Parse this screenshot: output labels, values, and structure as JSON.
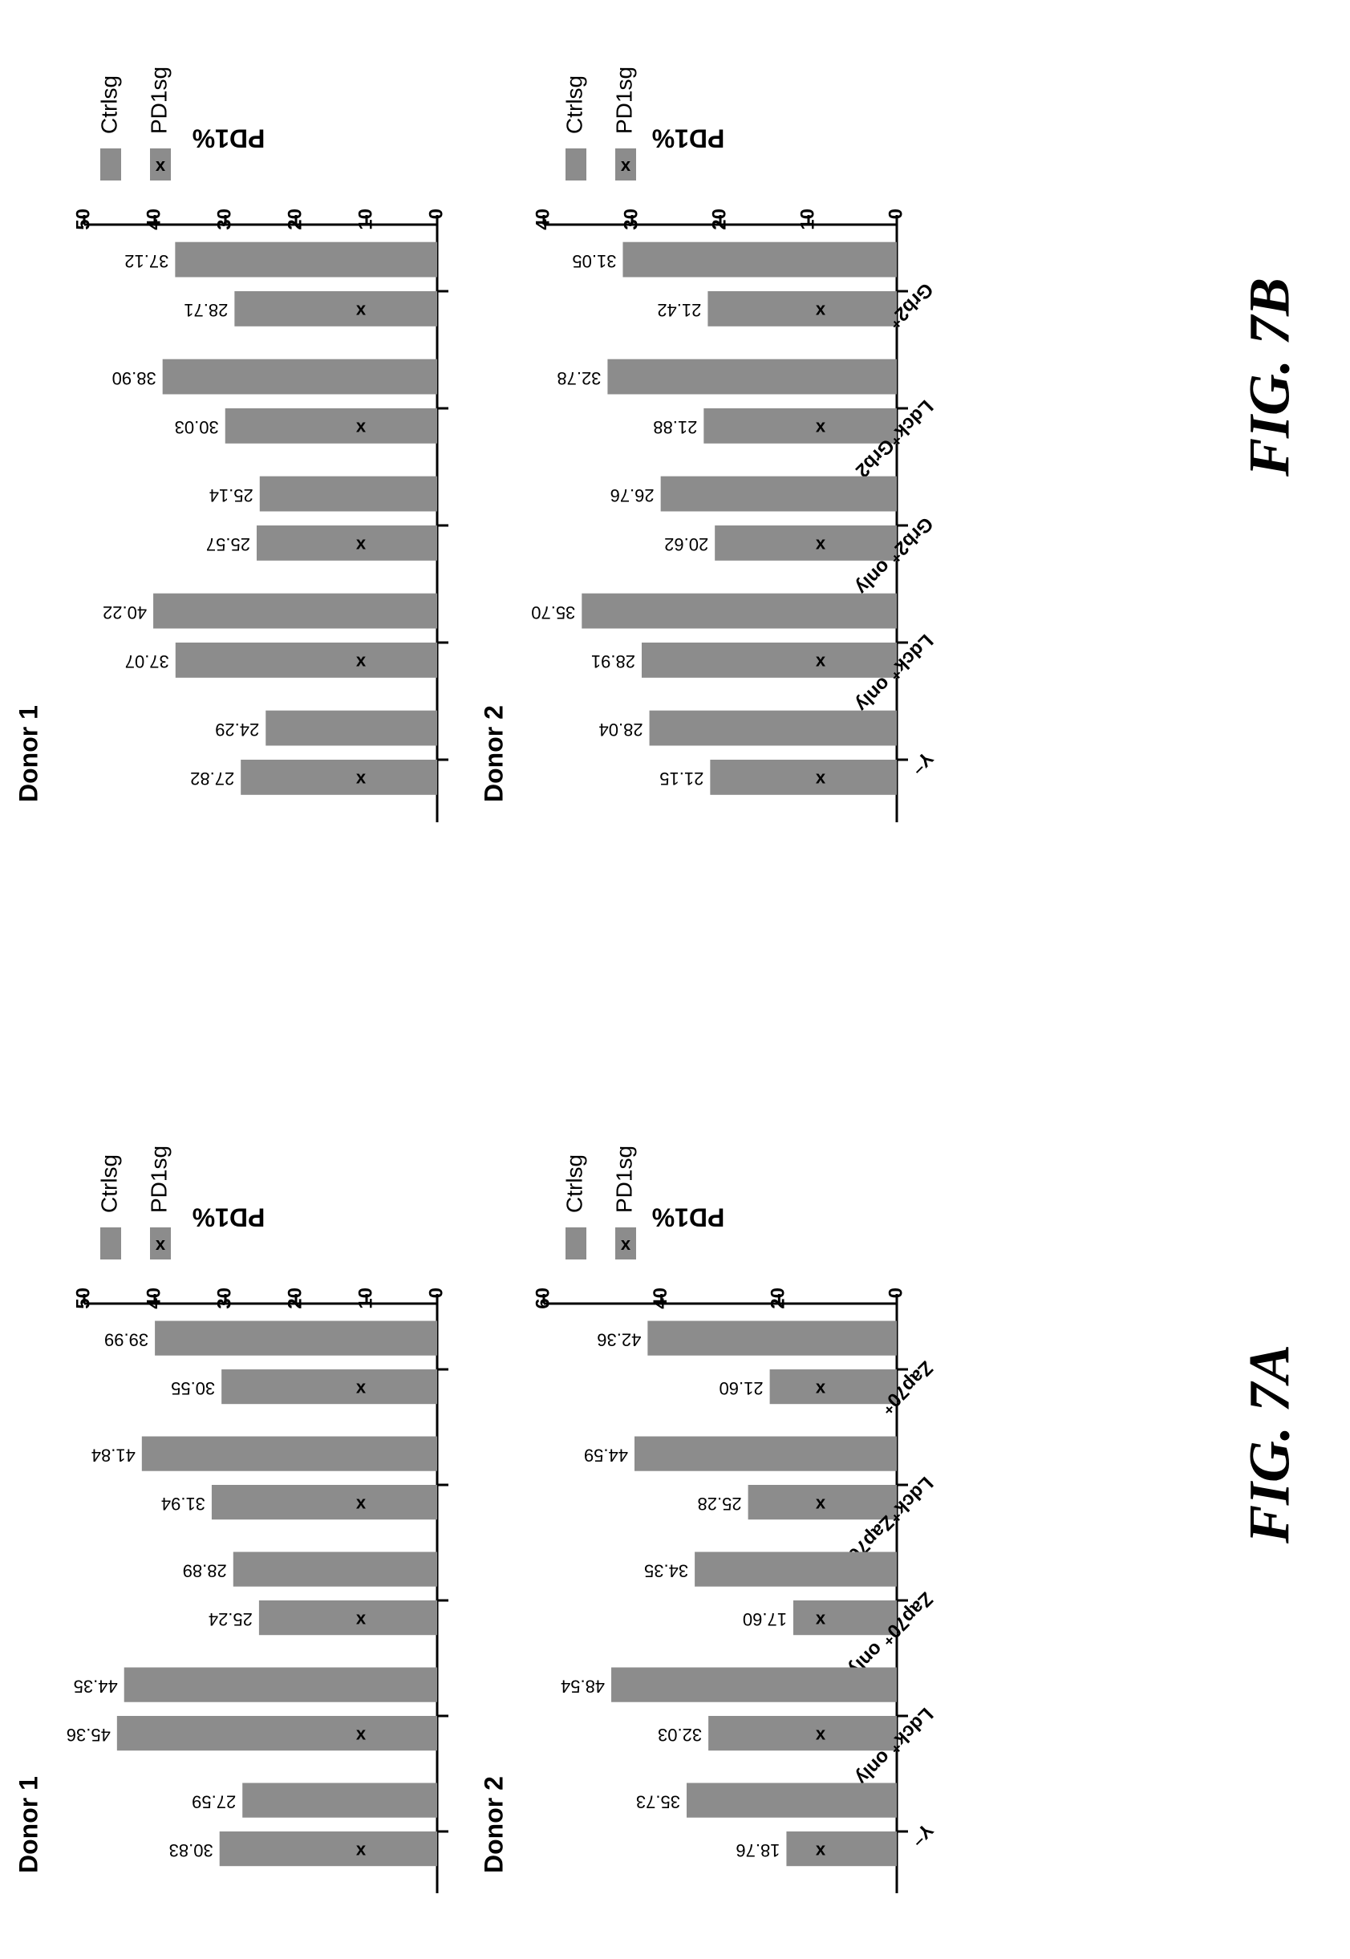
{
  "colors": {
    "bar": "#8c8c8c",
    "axis": "#000000",
    "background": "#ffffff"
  },
  "figures": [
    {
      "label": "FIG. 7A"
    },
    {
      "label": "FIG. 7B"
    }
  ],
  "chart_data": [
    {
      "type": "bar",
      "figure": "FIG. 7A",
      "title": "Donor 1",
      "ylabel": "PD1%",
      "ylim": [
        0,
        50
      ],
      "yticks": [
        0,
        10,
        20,
        30,
        40,
        50
      ],
      "categories": [
        "Zap70⁺",
        "Ldck⁺Zap70⁺",
        "Zap70⁺ only",
        "Ldck⁺ only",
        "Y⁻"
      ],
      "category_labels_visible": false,
      "series": [
        {
          "name": "Ctrlsg",
          "values": [
            39.99,
            41.84,
            28.89,
            44.35,
            27.59
          ],
          "labels": [
            "39.99",
            "41.84",
            "28.89",
            "44.35",
            "27.59"
          ]
        },
        {
          "name": "PD1sg",
          "values": [
            30.55,
            31.94,
            25.24,
            45.36,
            30.83
          ],
          "labels": [
            "30.55",
            "31.94",
            "25.24",
            "45.36",
            "30.83"
          ],
          "marker": "x"
        }
      ],
      "legend": "right"
    },
    {
      "type": "bar",
      "figure": "FIG. 7A",
      "title": "Donor 2",
      "ylabel": "PD1%",
      "ylim": [
        0,
        60
      ],
      "yticks": [
        0,
        20,
        40,
        60
      ],
      "categories": [
        "Zap70⁺",
        "Ldck⁺Zap70⁺",
        "Zap70⁺ only",
        "Ldck⁺ only",
        "Y⁻"
      ],
      "category_labels_visible": true,
      "series": [
        {
          "name": "Ctrlsg",
          "values": [
            42.36,
            44.59,
            34.35,
            48.54,
            35.73
          ],
          "labels": [
            "42.36",
            "44.59",
            "34.35",
            "48.54",
            "35.73"
          ]
        },
        {
          "name": "PD1sg",
          "values": [
            21.6,
            25.28,
            17.6,
            32.03,
            18.76
          ],
          "labels": [
            "21.60",
            "25.28",
            "17.60",
            "32.03",
            "18.76"
          ],
          "marker": "x"
        }
      ],
      "legend": "right"
    },
    {
      "type": "bar",
      "figure": "FIG. 7B",
      "title": "Donor 1",
      "ylabel": "PD1%",
      "ylim": [
        0,
        50
      ],
      "yticks": [
        0,
        10,
        20,
        30,
        40,
        50
      ],
      "categories": [
        "Grb2⁺",
        "Ldck⁺Grb2⁺",
        "Grb2⁺ only",
        "Ldck⁺ only",
        "Y⁻"
      ],
      "category_labels_visible": false,
      "series": [
        {
          "name": "Ctrlsg",
          "values": [
            37.12,
            38.9,
            25.14,
            40.22,
            24.29
          ],
          "labels": [
            "37.12",
            "38.90",
            "25.14",
            "40.22",
            "24.29"
          ]
        },
        {
          "name": "PD1sg",
          "values": [
            28.71,
            30.03,
            25.57,
            37.07,
            27.82
          ],
          "labels": [
            "28.71",
            "30.03",
            "25.57",
            "37.07",
            "27.82"
          ],
          "marker": "x"
        }
      ],
      "legend": "right"
    },
    {
      "type": "bar",
      "figure": "FIG. 7B",
      "title": "Donor 2",
      "ylabel": "PD1%",
      "ylim": [
        0,
        40
      ],
      "yticks": [
        0,
        10,
        20,
        30,
        40
      ],
      "categories": [
        "Grb2⁺",
        "Ldck⁺Grb2⁺",
        "Grb2⁺ only",
        "Ldck⁺ only",
        "Y⁻"
      ],
      "category_labels_visible": true,
      "series": [
        {
          "name": "Ctrlsg",
          "values": [
            31.05,
            32.78,
            26.76,
            35.7,
            28.04
          ],
          "labels": [
            "31.05",
            "32.78",
            "26.76",
            "35.70",
            "28.04"
          ]
        },
        {
          "name": "PD1sg",
          "values": [
            21.42,
            21.88,
            20.62,
            28.91,
            21.15
          ],
          "labels": [
            "21.42",
            "21.88",
            "20.62",
            "28.91",
            "21.15"
          ],
          "marker": "x"
        }
      ],
      "legend": "right"
    }
  ]
}
